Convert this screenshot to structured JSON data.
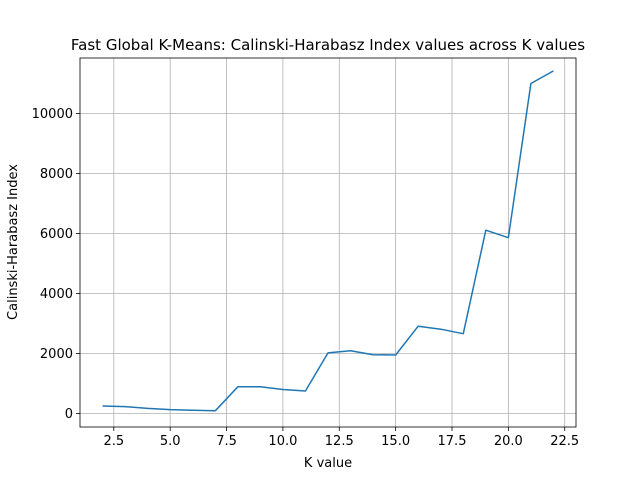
{
  "chart_data": {
    "type": "line",
    "title": "Fast Global K-Means: Calinski-Harabasz Index values across K values",
    "xlabel": "K value",
    "ylabel": "Calinski-Harabasz Index",
    "xlim": [
      1.0,
      23.0
    ],
    "ylim": [
      -450,
      11850
    ],
    "x_ticks": [
      2.5,
      5.0,
      7.5,
      10.0,
      12.5,
      15.0,
      17.5,
      20.0,
      22.5
    ],
    "x_tick_labels": [
      "2.5",
      "5.0",
      "7.5",
      "10.0",
      "12.5",
      "15.0",
      "17.5",
      "20.0",
      "22.5"
    ],
    "y_ticks": [
      0,
      2000,
      4000,
      6000,
      8000,
      10000
    ],
    "y_tick_labels": [
      "0",
      "2000",
      "4000",
      "6000",
      "8000",
      "10000"
    ],
    "grid": true,
    "series": [
      {
        "color": "#1f77b4",
        "x": [
          2,
          3,
          4,
          5,
          6,
          7,
          8,
          9,
          10,
          11,
          12,
          13,
          14,
          15,
          16,
          17,
          18,
          19,
          20,
          21,
          22
        ],
        "y": [
          250,
          230,
          170,
          130,
          110,
          90,
          890,
          890,
          800,
          750,
          2020,
          2090,
          1960,
          1950,
          2910,
          2810,
          2660,
          6110,
          5860,
          11000,
          11420
        ]
      }
    ]
  }
}
